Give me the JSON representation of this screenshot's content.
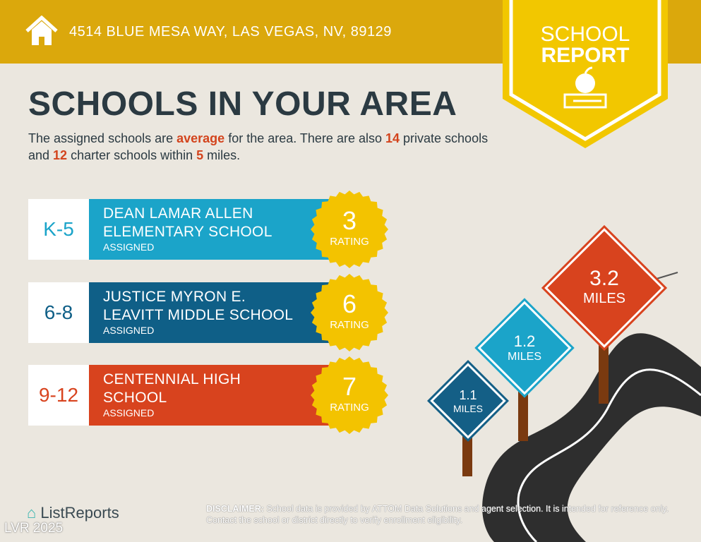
{
  "header": {
    "address": "4514 BLUE MESA WAY, LAS VEGAS, NV, 89129",
    "icon": "house-icon"
  },
  "badge": {
    "line1": "SCHOOL",
    "line2": "REPORT",
    "icon": "apple-books-icon"
  },
  "title": "SCHOOLS IN YOUR AREA",
  "intro": {
    "p1": "The assigned schools are ",
    "quality": "average",
    "p2": " for the area. There are also ",
    "private_count": "14",
    "p3": " private schools and ",
    "charter_count": "12",
    "p4": " charter schools within ",
    "miles": "5",
    "p5": " miles."
  },
  "schools": [
    {
      "grade": "K-5",
      "name1": "DEAN LAMAR ALLEN",
      "name2": "ELEMENTARY SCHOOL",
      "status": "ASSIGNED",
      "rating": "3",
      "rating_label": "RATING",
      "color": "#1ba4c9",
      "grade_color": "#1ba4c9"
    },
    {
      "grade": "6-8",
      "name1": "JUSTICE MYRON E.",
      "name2": "LEAVITT MIDDLE SCHOOL",
      "status": "ASSIGNED",
      "rating": "6",
      "rating_label": "RATING",
      "color": "#0f5f87",
      "grade_color": "#0f5f87"
    },
    {
      "grade": "9-12",
      "name1": "CENTENNIAL HIGH",
      "name2": "SCHOOL",
      "status": "ASSIGNED",
      "rating": "7",
      "rating_label": "RATING",
      "color": "#d8431e",
      "grade_color": "#d8431e"
    }
  ],
  "signs": [
    {
      "value": "1.1",
      "unit": "MILES",
      "color": "#145f86"
    },
    {
      "value": "1.2",
      "unit": "MILES",
      "color": "#1ba4c9"
    },
    {
      "value": "3.2",
      "unit": "MILES",
      "color": "#d8431e"
    }
  ],
  "disclaimer": {
    "label": "DISCLAIMER:",
    "text": " School data is provided by ATTOM Data Solutions and agent selection. It is intended for reference only. Contact the school or district directly to verify enrollment eligibility."
  },
  "logo": "ListReports",
  "watermark": "LVR 2025"
}
